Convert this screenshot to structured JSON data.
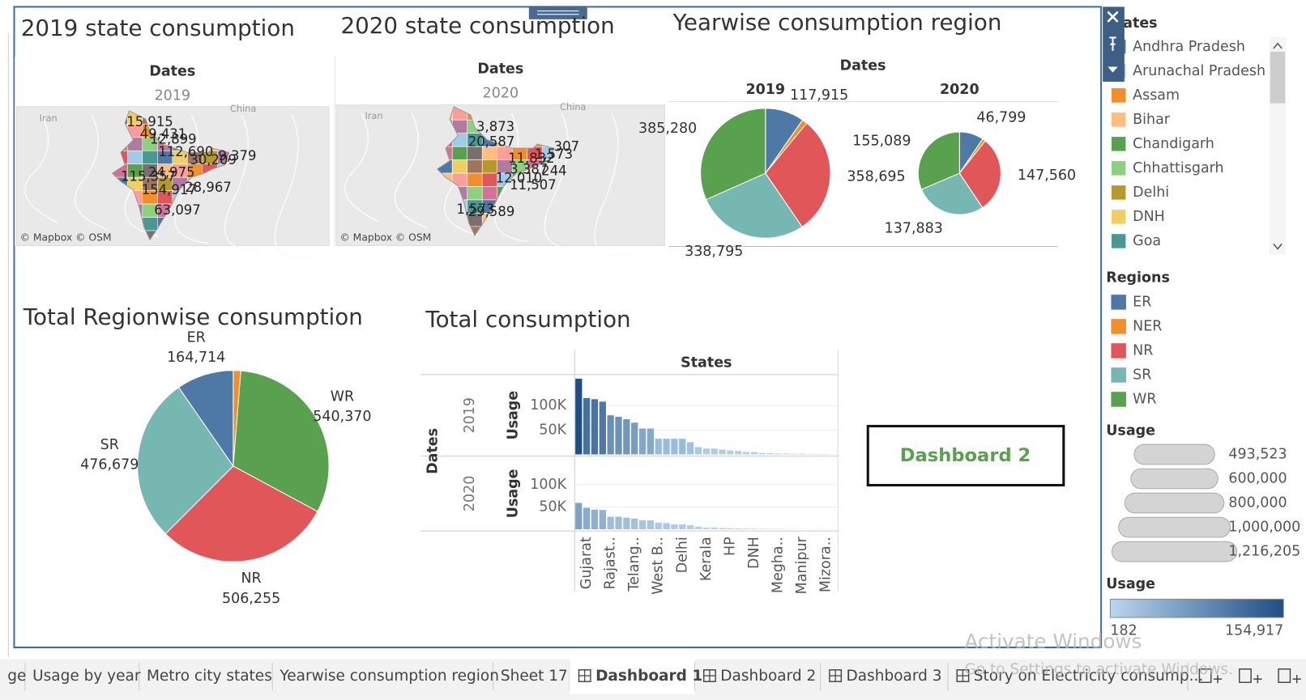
{
  "maps": [
    {
      "title": "2019 state consumption",
      "header": "Dates",
      "year": "2019",
      "places": [
        "Iran",
        "China"
      ],
      "labels": [
        "15,915",
        "49,431",
        "12,899",
        "112,690",
        "30,209",
        "9,379",
        "24,975",
        "115,357",
        "154,917",
        "28,967",
        "63,097"
      ],
      "credit": "© Mapbox © OSM"
    },
    {
      "title": "2020 state consumption",
      "header": "Dates",
      "year": "2020",
      "places": [
        "Iran",
        "China"
      ],
      "labels": [
        "3,873",
        "20,587",
        "11,832",
        "1,573",
        "307",
        "3,387",
        "244",
        "12,010",
        "11,507",
        "1,573",
        "29,589"
      ],
      "credit": "© Mapbox © OSM"
    }
  ],
  "chart_data": [
    {
      "type": "pie",
      "title": "Yearwise consumption region",
      "header": "Dates",
      "categories": [
        "ER",
        "NER",
        "NR",
        "SR",
        "WR"
      ],
      "colors": [
        "#4e79a7",
        "#f28e2b",
        "#e15759",
        "#76b7b2",
        "#59a14f"
      ],
      "pies": [
        {
          "name": "2019",
          "values": [
            117915,
            15520,
            358695,
            338795,
            385280
          ],
          "value_labels": [
            "117,915",
            null,
            "358,695",
            "338,795",
            "385,280"
          ]
        },
        {
          "name": "2020",
          "values": [
            46799,
            6192,
            147560,
            137883,
            155089
          ],
          "value_labels": [
            "46,799",
            null,
            "147,560",
            "137,883",
            "155,089"
          ]
        }
      ]
    },
    {
      "type": "pie",
      "title": "Total Regionwise consumption",
      "categories": [
        null,
        "WR",
        "NR",
        "SR",
        "ER"
      ],
      "colors": [
        "#f28e2b",
        "#59a14f",
        "#e15759",
        "#76b7b2",
        "#4e79a7"
      ],
      "values": [
        21712,
        540370,
        506255,
        476679,
        164714
      ],
      "value_labels": [
        null,
        "540,370",
        "506,255",
        "476,679",
        "164,714"
      ]
    },
    {
      "type": "bar",
      "title": "Total consumption",
      "header": "States",
      "row_header": "Dates",
      "y_label": "Usage",
      "categories": [
        null,
        "Gujarat",
        null,
        null,
        "Rajast..",
        null,
        null,
        "Telang..",
        null,
        null,
        "West B..",
        null,
        null,
        "Delhi",
        null,
        null,
        "Kerala",
        null,
        null,
        "HP",
        null,
        null,
        "DNH",
        null,
        null,
        "Megha..",
        null,
        null,
        "Manipur",
        null,
        null,
        "Mizora..",
        null
      ],
      "series": [
        {
          "name": "2019",
          "values": [
            154917,
            115357,
            113000,
            108000,
            80000,
            77000,
            72000,
            65000,
            53000,
            53000,
            32000,
            32000,
            32000,
            32000,
            25000,
            15000,
            12000,
            12000,
            10000,
            8000,
            7000,
            5000,
            5000,
            3000,
            3000,
            2000,
            2000,
            1500,
            1500,
            1000,
            1000,
            800,
            500
          ]
        },
        {
          "name": "2020",
          "values": [
            59000,
            48000,
            44000,
            43000,
            28000,
            28000,
            26000,
            24000,
            20000,
            20000,
            15000,
            14000,
            11000,
            11000,
            9000,
            6000,
            4000,
            4000,
            3000,
            2500,
            2000,
            1600,
            1500,
            1200,
            1000,
            800,
            700,
            500,
            400,
            300,
            300,
            244,
            182
          ]
        }
      ],
      "ylim": [
        0,
        160000
      ],
      "yticks": [
        {
          "value": 50000,
          "label": "50K"
        },
        {
          "value": 100000,
          "label": "100K"
        }
      ],
      "grid": true
    }
  ],
  "button": "Dashboard 2",
  "legends": {
    "states": {
      "title": "States",
      "items": [
        {
          "name": "Andhra Pradesh",
          "color": "#4e79a7"
        },
        {
          "name": "Arunachal Pradesh",
          "color": "#a0cbe8"
        },
        {
          "name": "Assam",
          "color": "#f28e2b"
        },
        {
          "name": "Bihar",
          "color": "#ffbe7d"
        },
        {
          "name": "Chandigarh",
          "color": "#59a14f"
        },
        {
          "name": "Chhattisgarh",
          "color": "#8cd17d"
        },
        {
          "name": "Delhi",
          "color": "#b6992d"
        },
        {
          "name": "DNH",
          "color": "#f1ce63"
        },
        {
          "name": "Goa",
          "color": "#499894"
        }
      ]
    },
    "regions": {
      "title": "Regions"
    },
    "size": {
      "title": "Usage",
      "ticks": [
        {
          "value": 493523,
          "label": "493,523"
        },
        {
          "value": 600000,
          "label": "600,000"
        },
        {
          "value": 800000,
          "label": "800,000"
        },
        {
          "value": 1000000,
          "label": "1,000,000"
        },
        {
          "value": 1216205,
          "label": "1,216,205"
        }
      ]
    },
    "color": {
      "title": "Usage",
      "ticks": [
        182,
        {
          "value": 154917,
          "label": "154,917"
        }
      ],
      "colors": [
        "#b9d6ee",
        "#1f4e84"
      ]
    }
  },
  "tabs": [
    "ge",
    "Usage by year",
    "Metro city states",
    "Yearwise consumption region",
    "Sheet 17",
    "Dashboard 1",
    "Dashboard 2",
    "Dashboard 3",
    "Story on Electricity consump..."
  ],
  "watermark": {
    "line1": "Activate Windows",
    "line2": "Go to Settings to activate Windows."
  }
}
